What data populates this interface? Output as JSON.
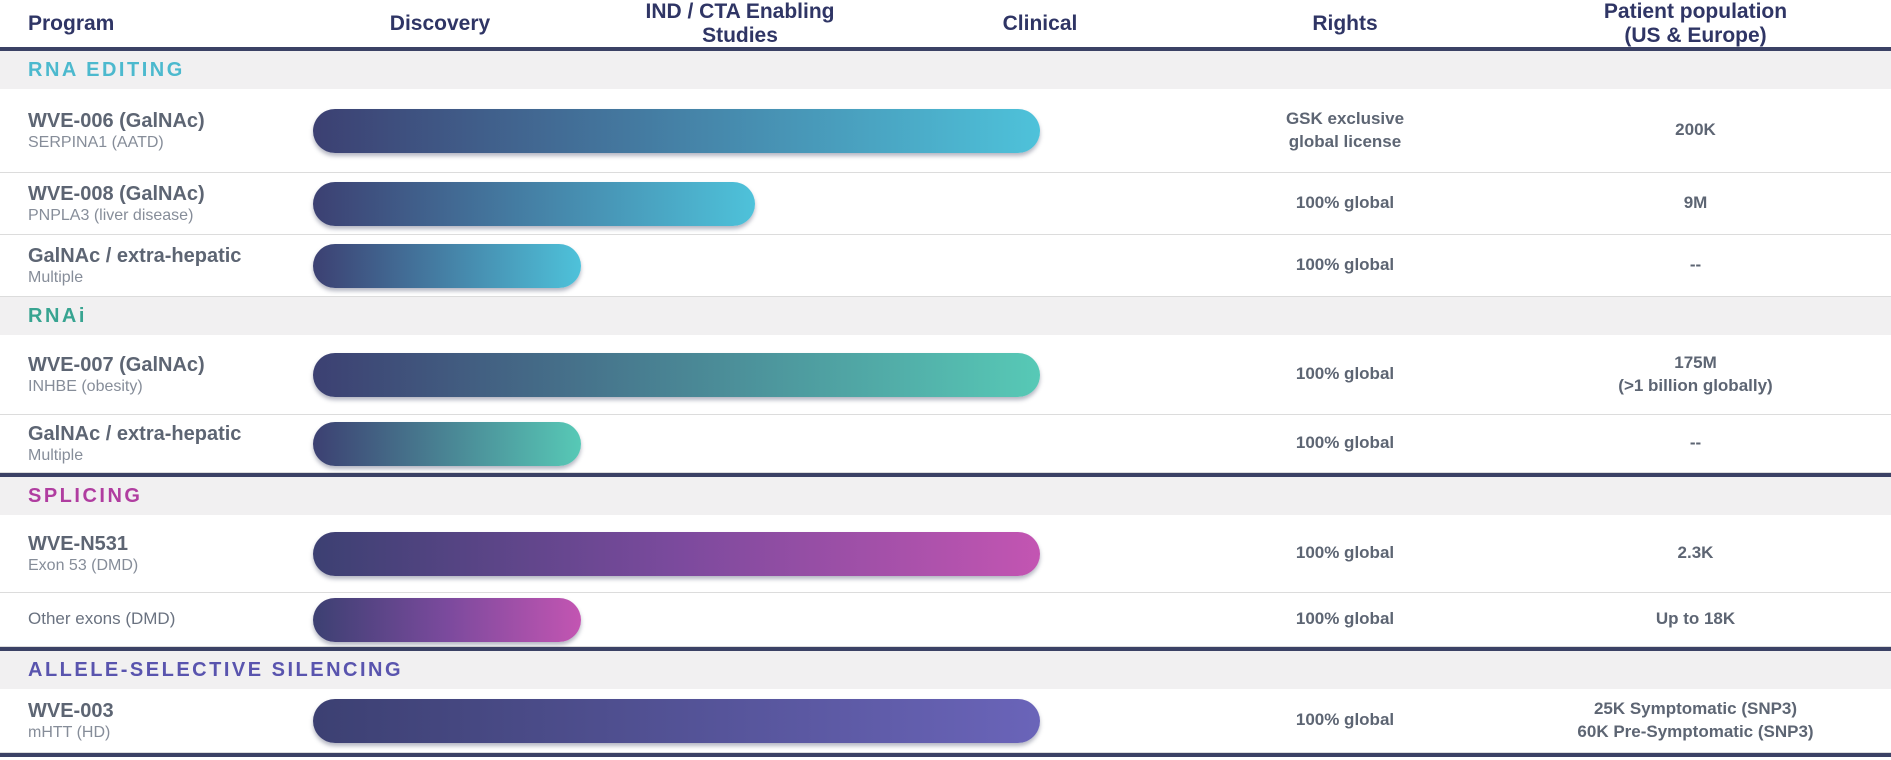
{
  "header": {
    "columns": [
      "Program",
      "Discovery",
      "IND / CTA Enabling\nStudies",
      "Clinical",
      "Rights",
      "Patient population\n(US & Europe)"
    ]
  },
  "colors": {
    "divider_navy": "#3b4165",
    "band_background": "#f1f0f1",
    "header_text": "#2f3565",
    "body_text": "#5d6573",
    "bar_start_navy": "#3c4072"
  },
  "sections": [
    {
      "label": "RNA EDITING",
      "label_color": "#4cb9ce",
      "bar_gradient": [
        "#3c4072",
        "#4ec2da"
      ],
      "rows": [
        {
          "name": "WVE-006 (GalNAc)",
          "subtitle": "SERPINA1 (AATD)",
          "stage_reached": "Clinical",
          "stage_extent": 2.5,
          "rights": "GSK exclusive\nglobal license",
          "population": "200K"
        },
        {
          "name": "WVE-008 (GalNAc)",
          "subtitle": "PNPLA3 (liver disease)",
          "stage_reached": "IND / CTA Enabling Studies",
          "stage_extent": 1.55,
          "rights": "100% global",
          "population": "9M"
        },
        {
          "name": "GalNAc / extra-hepatic",
          "subtitle": "Multiple",
          "stage_reached": "Discovery",
          "stage_extent": 0.97,
          "rights": "100% global",
          "population": "--"
        }
      ]
    },
    {
      "label": "RNAi",
      "label_color": "#38a491",
      "bar_gradient": [
        "#3c4072",
        "#57c9b6"
      ],
      "rows": [
        {
          "name": "WVE-007 (GalNAc)",
          "subtitle": "INHBE (obesity)",
          "stage_reached": "Clinical",
          "stage_extent": 2.5,
          "rights": "100% global",
          "population": "175M\n(>1 billion globally)"
        },
        {
          "name": "GalNAc / extra-hepatic",
          "subtitle": "Multiple",
          "stage_reached": "Discovery",
          "stage_extent": 0.97,
          "rights": "100% global",
          "population": "--"
        }
      ]
    },
    {
      "label": "SPLICING",
      "label_color": "#b03da0",
      "bar_gradient": [
        "#3c4072",
        "#7b4a9d",
        "#c355b2"
      ],
      "rows": [
        {
          "name": "WVE-N531",
          "subtitle": "Exon 53 (DMD)",
          "stage_reached": "Clinical",
          "stage_extent": 2.5,
          "rights": "100% global",
          "population": "2.3K"
        },
        {
          "name": "Other exons (DMD)",
          "subtitle": "",
          "stage_reached": "Discovery",
          "stage_extent": 0.97,
          "rights": "100% global",
          "population": "Up to 18K"
        }
      ]
    },
    {
      "label": "ALLELE-SELECTIVE SILENCING",
      "label_color": "#5954ae",
      "bar_gradient": [
        "#3c4072",
        "#6a64b9"
      ],
      "rows": [
        {
          "name": "WVE-003",
          "subtitle": "mHTT (HD)",
          "stage_reached": "Clinical",
          "stage_extent": 2.5,
          "rights": "100% global",
          "population": "25K Symptomatic (SNP3)\n60K Pre-Symptomatic (SNP3)"
        }
      ]
    }
  ],
  "chart_data": {
    "type": "bar",
    "orientation": "horizontal",
    "title": "Pipeline programs by development stage",
    "stages": [
      "Discovery",
      "IND / CTA Enabling Studies",
      "Clinical"
    ],
    "xlim": [
      0,
      3
    ],
    "grid": false,
    "legend": false,
    "series": [
      {
        "section": "RNA EDITING",
        "program": "WVE-006 (GalNAc)",
        "target": "SERPINA1 (AATD)",
        "progress_stages": 2.5,
        "rights": "GSK exclusive global license",
        "patient_population_us_europe": "200K"
      },
      {
        "section": "RNA EDITING",
        "program": "WVE-008 (GalNAc)",
        "target": "PNPLA3 (liver disease)",
        "progress_stages": 1.55,
        "rights": "100% global",
        "patient_population_us_europe": "9M"
      },
      {
        "section": "RNA EDITING",
        "program": "GalNAc / extra-hepatic",
        "target": "Multiple",
        "progress_stages": 1.0,
        "rights": "100% global",
        "patient_population_us_europe": "--"
      },
      {
        "section": "RNAi",
        "program": "WVE-007 (GalNAc)",
        "target": "INHBE (obesity)",
        "progress_stages": 2.5,
        "rights": "100% global",
        "patient_population_us_europe": "175M (>1 billion globally)"
      },
      {
        "section": "RNAi",
        "program": "GalNAc / extra-hepatic",
        "target": "Multiple",
        "progress_stages": 1.0,
        "rights": "100% global",
        "patient_population_us_europe": "--"
      },
      {
        "section": "SPLICING",
        "program": "WVE-N531",
        "target": "Exon 53 (DMD)",
        "progress_stages": 2.5,
        "rights": "100% global",
        "patient_population_us_europe": "2.3K"
      },
      {
        "section": "SPLICING",
        "program": "Other exons (DMD)",
        "target": "",
        "progress_stages": 1.0,
        "rights": "100% global",
        "patient_population_us_europe": "Up to 18K"
      },
      {
        "section": "ALLELE-SELECTIVE SILENCING",
        "program": "WVE-003",
        "target": "mHTT (HD)",
        "progress_stages": 2.5,
        "rights": "100% global",
        "patient_population_us_europe": "25K Symptomatic (SNP3); 60K Pre-Symptomatic (SNP3)"
      }
    ]
  }
}
